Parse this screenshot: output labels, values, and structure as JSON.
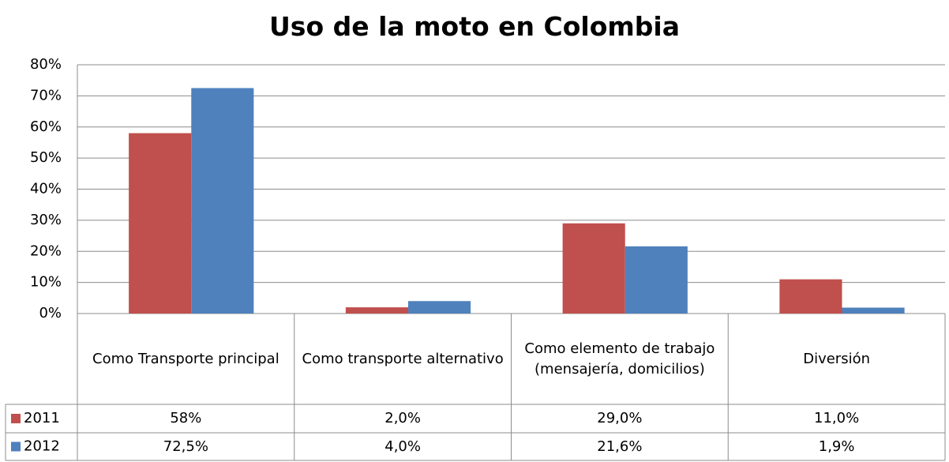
{
  "chart_data": {
    "type": "bar",
    "title": "Uso de la moto en Colombia",
    "categories": [
      "Como Transporte principal",
      "Como transporte alternativo",
      "Como elemento de trabajo (mensajería, domicilios)",
      "Diversión"
    ],
    "series": [
      {
        "name": "2011",
        "color": "#c0504d",
        "values": [
          58,
          2.0,
          29.0,
          11.0
        ],
        "value_labels": [
          "58%",
          "2,0%",
          "29,0%",
          "11,0%"
        ]
      },
      {
        "name": "2012",
        "color": "#4f81bd",
        "values": [
          72.5,
          4.0,
          21.6,
          1.9
        ],
        "value_labels": [
          "72,5%",
          "4,0%",
          "21,6%",
          "1,9%"
        ]
      }
    ],
    "ylim": [
      0,
      80
    ],
    "yticks": [
      {
        "value": 0,
        "label": "0%"
      },
      {
        "value": 10,
        "label": "10%"
      },
      {
        "value": 20,
        "label": "20%"
      },
      {
        "value": 30,
        "label": "30%"
      },
      {
        "value": 40,
        "label": "40%"
      },
      {
        "value": 50,
        "label": "50%"
      },
      {
        "value": 60,
        "label": "60%"
      },
      {
        "value": 70,
        "label": "70%"
      },
      {
        "value": 80,
        "label": "80%"
      }
    ],
    "grid": true
  }
}
